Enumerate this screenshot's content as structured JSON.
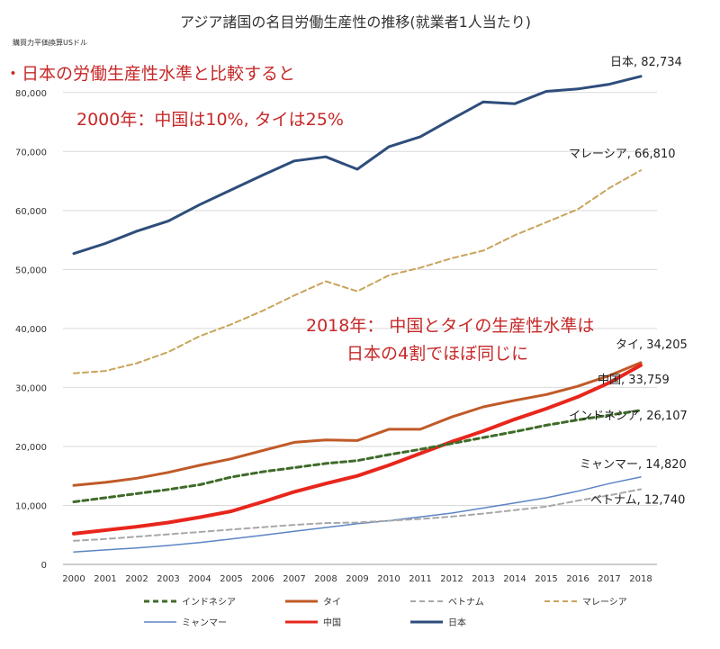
{
  "chart_data": {
    "type": "line",
    "title": "アジア諸国の名目労働生産性の推移(就業者1人当たり)",
    "unit_label": "購買力平価換算USドル",
    "xlabel": "",
    "ylabel": "",
    "ylim": [
      0,
      85000
    ],
    "y_ticks": [
      "0",
      "10,000",
      "20,000",
      "30,000",
      "40,000",
      "50,000",
      "60,000",
      "70,000",
      "80,000"
    ],
    "categories": [
      "2000",
      "2001",
      "2002",
      "2003",
      "2004",
      "2005",
      "2006",
      "2007",
      "2008",
      "2009",
      "2010",
      "2011",
      "2012",
      "2013",
      "2014",
      "2015",
      "2016",
      "2017",
      "2018"
    ],
    "grid": true,
    "legend_position": "bottom",
    "annotations": [
      "・日本の労働生産性水準と比較すると",
      "2000年：中国は10%, タイは25%",
      "2018年： 中国とタイの生産性水準は",
      "日本の4割でほぼ同じに"
    ],
    "series": [
      {
        "name": "日本",
        "color": "#2e4d7b",
        "style": "solid",
        "width": 3,
        "end_label": "日本, 82,734",
        "values": [
          52700,
          54400,
          56500,
          58200,
          61000,
          63500,
          66000,
          68400,
          69100,
          67000,
          70800,
          72500,
          75500,
          78400,
          78100,
          80200,
          80600,
          81400,
          82734
        ]
      },
      {
        "name": "マレーシア",
        "color": "#c9a45c",
        "style": "dashed",
        "width": 2,
        "end_label": "マレーシア, 66,810",
        "values": [
          32400,
          32800,
          34100,
          36000,
          38700,
          40700,
          43000,
          45600,
          48000,
          46300,
          49000,
          50300,
          51900,
          53200,
          55800,
          58000,
          60200,
          63800,
          66810
        ]
      },
      {
        "name": "タイ",
        "color": "#c05a28",
        "style": "solid",
        "width": 3,
        "end_label": "タイ, 34,205",
        "values": [
          13400,
          13900,
          14600,
          15600,
          16800,
          17900,
          19300,
          20700,
          21100,
          21000,
          22900,
          22900,
          25000,
          26700,
          27800,
          28800,
          30200,
          32000,
          34205
        ]
      },
      {
        "name": "中国",
        "color": "#e8261c",
        "style": "solid",
        "width": 4,
        "end_label": "中国, 33,759",
        "values": [
          5200,
          5800,
          6400,
          7100,
          8000,
          9000,
          10600,
          12300,
          13700,
          15000,
          16800,
          18800,
          20800,
          22600,
          24600,
          26400,
          28400,
          30800,
          33759
        ]
      },
      {
        "name": "インドネシア",
        "color": "#3f6b2a",
        "style": "dashed",
        "width": 3,
        "end_label": "インドネシア, 26,107",
        "values": [
          10600,
          11300,
          12000,
          12700,
          13500,
          14800,
          15700,
          16400,
          17100,
          17600,
          18600,
          19500,
          20500,
          21500,
          22500,
          23600,
          24500,
          25300,
          26107
        ]
      },
      {
        "name": "ミャンマー",
        "color": "#5b85c4",
        "style": "solid",
        "width": 1.5,
        "end_label": "ミャンマー, 14,820",
        "values": [
          2100,
          2450,
          2800,
          3200,
          3700,
          4300,
          4950,
          5600,
          6250,
          6900,
          7400,
          8050,
          8700,
          9550,
          10400,
          11300,
          12400,
          13700,
          14820
        ]
      },
      {
        "name": "ベトナム",
        "color": "#a8a8a8",
        "style": "dashed",
        "width": 2,
        "end_label": "ベトナム, 12,740",
        "values": [
          4000,
          4300,
          4700,
          5100,
          5500,
          5900,
          6300,
          6700,
          7000,
          7100,
          7400,
          7700,
          8100,
          8600,
          9200,
          9800,
          10800,
          11700,
          12740
        ]
      }
    ],
    "legend_order": [
      "インドネシア",
      "タイ",
      "ベトナム",
      "マレーシア",
      "ミャンマー",
      "中国",
      "日本"
    ]
  }
}
